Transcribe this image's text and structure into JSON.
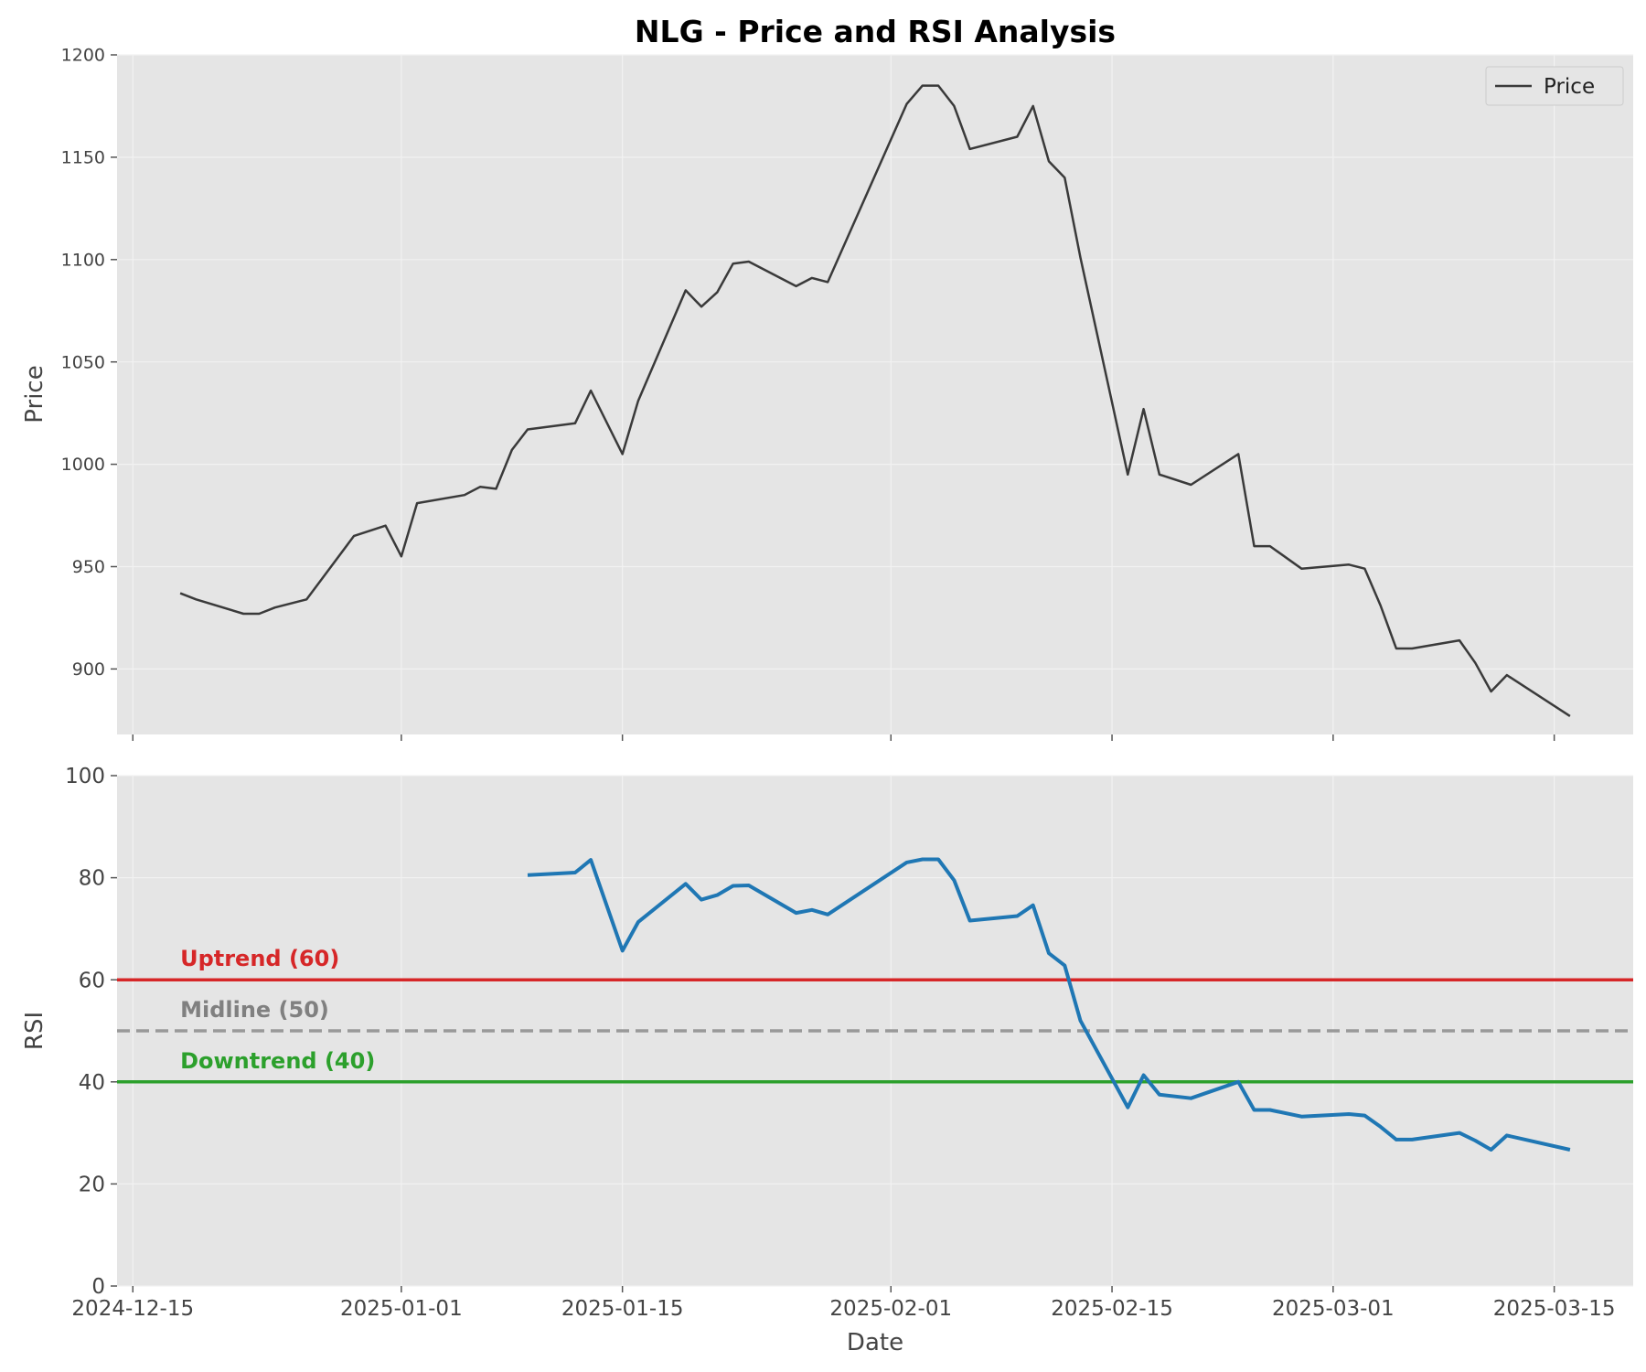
{
  "chart_data": [
    {
      "type": "line",
      "title": "NLG - Price and RSI Analysis",
      "xlabel": "",
      "ylabel": "Price",
      "ylim": [
        868,
        1200
      ],
      "yticks": [
        900,
        950,
        1000,
        1050,
        1100,
        1150,
        1200
      ],
      "grid": true,
      "legend": {
        "position": "top-right",
        "entries": [
          "Price"
        ]
      },
      "series": [
        {
          "name": "Price",
          "color": "#3a3a3a",
          "x": [
            "2024-12-18",
            "2024-12-19",
            "2024-12-22",
            "2024-12-23",
            "2024-12-24",
            "2024-12-26",
            "2024-12-29",
            "2024-12-31",
            "2025-01-01",
            "2025-01-02",
            "2025-01-05",
            "2025-01-06",
            "2025-01-07",
            "2025-01-08",
            "2025-01-09",
            "2025-01-12",
            "2025-01-13",
            "2025-01-15",
            "2025-01-16",
            "2025-01-19",
            "2025-01-20",
            "2025-01-21",
            "2025-01-22",
            "2025-01-23",
            "2025-01-26",
            "2025-01-27",
            "2025-01-28",
            "2025-02-02",
            "2025-02-03",
            "2025-02-04",
            "2025-02-05",
            "2025-02-06",
            "2025-02-09",
            "2025-02-10",
            "2025-02-11",
            "2025-02-12",
            "2025-02-13",
            "2025-02-16",
            "2025-02-17",
            "2025-02-18",
            "2025-02-20",
            "2025-02-23",
            "2025-02-24",
            "2025-02-25",
            "2025-02-27",
            "2025-03-02",
            "2025-03-03",
            "2025-03-04",
            "2025-03-05",
            "2025-03-06",
            "2025-03-09",
            "2025-03-10",
            "2025-03-11",
            "2025-03-12",
            "2025-03-16"
          ],
          "values": [
            937,
            934,
            927,
            927,
            930,
            934,
            965,
            970,
            955,
            981,
            985,
            989,
            988,
            1007,
            1017,
            1020,
            1036,
            1005,
            1031,
            1085,
            1077,
            1084,
            1098,
            1099,
            1087,
            1091,
            1089,
            1176,
            1185,
            1185,
            1175,
            1154,
            1160,
            1175,
            1148,
            1140,
            1101,
            995,
            1027,
            995,
            990,
            1005,
            960,
            960,
            949,
            951,
            949,
            931,
            910,
            910,
            914,
            903,
            889,
            897,
            877
          ]
        }
      ]
    },
    {
      "type": "line",
      "xlabel": "Date",
      "ylabel": "RSI",
      "ylim": [
        0,
        100
      ],
      "yticks": [
        0,
        20,
        40,
        60,
        80,
        100
      ],
      "xticks": [
        "2024-12-15",
        "2025-01-01",
        "2025-01-15",
        "2025-02-01",
        "2025-02-15",
        "2025-03-01",
        "2025-03-15"
      ],
      "xlim": [
        "2024-12-14",
        "2025-03-20"
      ],
      "grid": true,
      "series": [
        {
          "color": "#1f77b4",
          "x": [
            "2025-01-09",
            "2025-01-12",
            "2025-01-13",
            "2025-01-15",
            "2025-01-16",
            "2025-01-19",
            "2025-01-20",
            "2025-01-21",
            "2025-01-22",
            "2025-01-23",
            "2025-01-26",
            "2025-01-27",
            "2025-01-28",
            "2025-02-02",
            "2025-02-03",
            "2025-02-04",
            "2025-02-05",
            "2025-02-06",
            "2025-02-09",
            "2025-02-10",
            "2025-02-11",
            "2025-02-12",
            "2025-02-13",
            "2025-02-16",
            "2025-02-17",
            "2025-02-18",
            "2025-02-20",
            "2025-02-23",
            "2025-02-24",
            "2025-02-25",
            "2025-02-27",
            "2025-03-02",
            "2025-03-03",
            "2025-03-04",
            "2025-03-05",
            "2025-03-06",
            "2025-03-09",
            "2025-03-10",
            "2025-03-11",
            "2025-03-12",
            "2025-03-16"
          ],
          "values": [
            80.5,
            81,
            83.5,
            65.7,
            71.3,
            78.8,
            75.7,
            76.6,
            78.4,
            78.5,
            73.1,
            73.7,
            72.8,
            83,
            83.6,
            83.6,
            79.5,
            71.6,
            72.5,
            74.6,
            65.2,
            62.8,
            52,
            35,
            41.3,
            37.5,
            36.8,
            40,
            34.5,
            34.5,
            33.2,
            33.7,
            33.4,
            31.2,
            28.7,
            28.7,
            30,
            28.5,
            26.7,
            29.5,
            26.7
          ]
        }
      ],
      "reference_lines": [
        {
          "label": "Uptrend (60)",
          "value": 60,
          "color": "#d62728",
          "style": "solid"
        },
        {
          "label": "Midline (50)",
          "value": 50,
          "color": "#999999",
          "style": "dashed"
        },
        {
          "label": "Downtrend (40)",
          "value": 40,
          "color": "#2ca02c",
          "style": "solid"
        }
      ]
    }
  ]
}
